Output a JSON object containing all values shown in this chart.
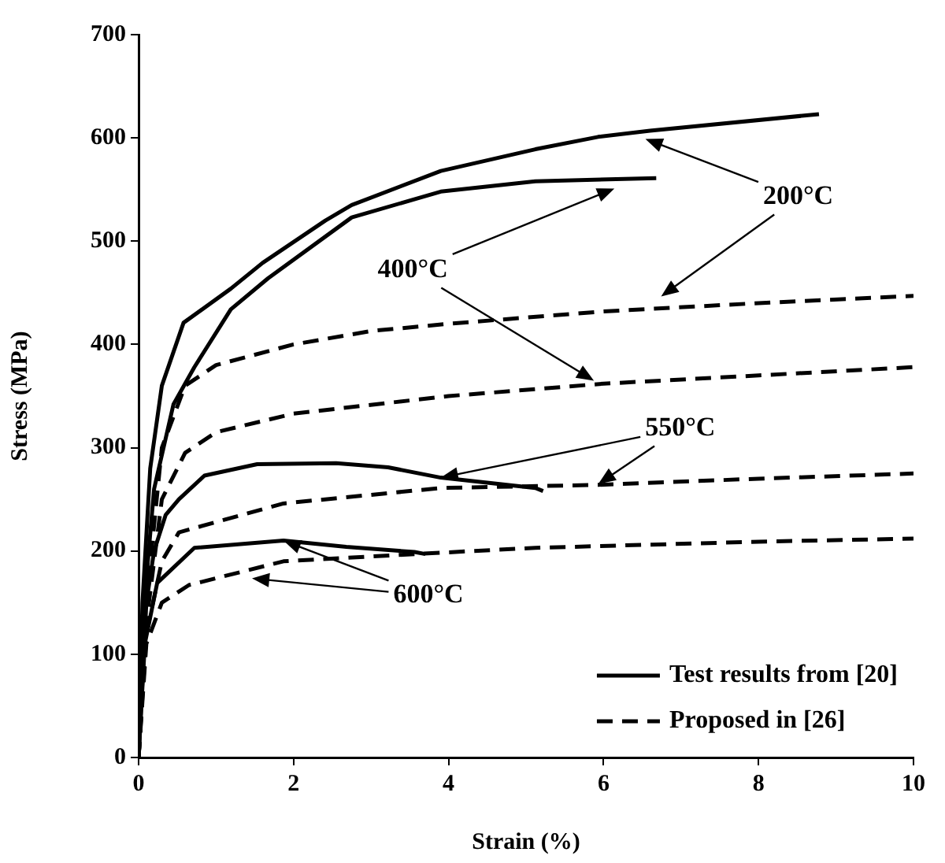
{
  "chart_data": {
    "type": "line",
    "xlabel": "Strain (%)",
    "ylabel": "Stress (MPa)",
    "xlim": [
      0,
      10
    ],
    "ylim": [
      0,
      700
    ],
    "xticks": [
      0,
      2,
      4,
      6,
      8,
      10
    ],
    "yticks": [
      0,
      100,
      200,
      300,
      400,
      500,
      600,
      700
    ],
    "grid": false,
    "legend": "bottom right",
    "marker": "none",
    "series": [
      {
        "name": "Test results from [20]",
        "color": "#000000",
        "line_style": "solid",
        "x": [
          0,
          0.05,
          0.15,
          0.3,
          0.58,
          1.19,
          1.6,
          2.41,
          2.75,
          3.9,
          5.12,
          5.93,
          6.6,
          8.78
        ],
        "values": [
          0,
          150,
          280,
          360,
          421,
          454,
          479,
          520,
          535,
          568,
          589,
          601,
          607,
          623
        ]
      },
      {
        "color": "#000000",
        "line_style": "solid",
        "x": [
          0,
          0.05,
          0.2,
          0.45,
          0.72,
          1.19,
          1.67,
          2.75,
          3.9,
          5.12,
          6.68
        ],
        "values": [
          0,
          130,
          260,
          342,
          378,
          434,
          464,
          523,
          548,
          558,
          561
        ]
      },
      {
        "color": "#000000",
        "line_style": "solid",
        "x": [
          0,
          0.1,
          0.2,
          0.35,
          0.52,
          0.85,
          1.53,
          2.55,
          3.22,
          3.9,
          5.12,
          5.22
        ],
        "values": [
          0,
          150,
          200,
          235,
          250,
          273,
          284,
          285,
          281,
          271,
          261,
          258
        ]
      },
      {
        "color": "#000000",
        "line_style": "solid",
        "x": [
          0,
          0.08,
          0.24,
          0.72,
          1.87,
          2.68,
          3.56,
          3.7
        ],
        "values": [
          0,
          110,
          169,
          203,
          210,
          204,
          199,
          197
        ]
      },
      {
        "name": "Proposed in [26]",
        "color": "#000000",
        "line_style": "dashed",
        "x": [
          0,
          0.1,
          0.3,
          0.6,
          1,
          2,
          3,
          4,
          6,
          8,
          10
        ],
        "values": [
          0,
          150,
          300,
          360,
          380,
          400,
          413,
          420,
          432,
          440,
          447
        ]
      },
      {
        "color": "#000000",
        "line_style": "dashed",
        "x": [
          0,
          0.1,
          0.3,
          0.6,
          1,
          2,
          4,
          6,
          8,
          10
        ],
        "values": [
          0,
          130,
          250,
          295,
          315,
          333,
          350,
          362,
          370,
          378
        ]
      },
      {
        "color": "#000000",
        "line_style": "dashed",
        "x": [
          0,
          0.1,
          0.3,
          0.52,
          1.87,
          3.9,
          5.93,
          8,
          10
        ],
        "values": [
          0,
          120,
          190,
          218,
          246,
          261,
          264,
          270,
          275
        ]
      },
      {
        "color": "#000000",
        "line_style": "dashed",
        "x": [
          0,
          0.1,
          0.3,
          0.65,
          1.87,
          3.56,
          5.12,
          8,
          10
        ],
        "values": [
          0,
          110,
          150,
          167,
          190,
          197,
          203,
          209,
          212
        ]
      }
    ],
    "annotations": [
      {
        "text": "200°C",
        "x": 6.54,
        "y": 599
      },
      {
        "text": "400°C",
        "x": 6.14,
        "y": 551
      },
      {
        "text": "550°C",
        "x": 3.9,
        "y": 271
      },
      {
        "text": "600°C",
        "x": 1.87,
        "y": 210
      }
    ]
  }
}
